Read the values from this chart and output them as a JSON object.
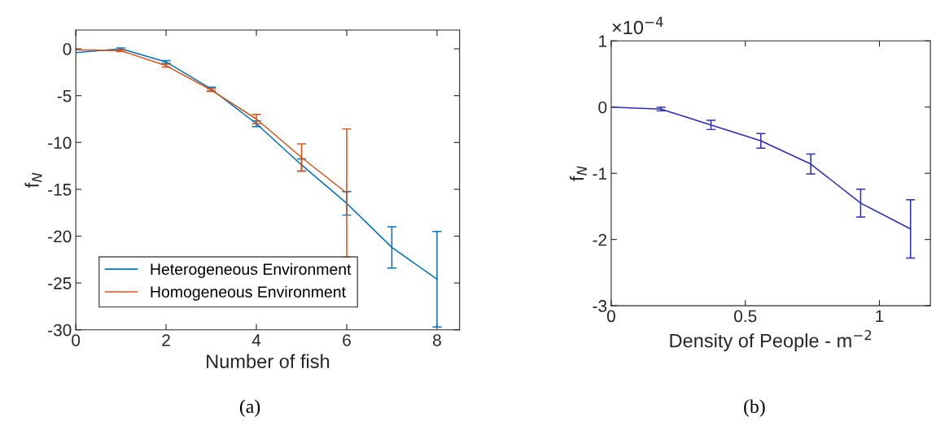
{
  "chart_data": [
    {
      "type": "line",
      "xlabel": "Number of fish",
      "ylabel": "f$_{N}$",
      "xlim": [
        0,
        8.5
      ],
      "ylim": [
        -30,
        2
      ],
      "xticks": [
        0,
        2,
        4,
        6,
        8
      ],
      "yticks": [
        -30,
        -25,
        -20,
        -15,
        -10,
        -5,
        0
      ],
      "grid": false,
      "legend": "bottom left",
      "marker": "none",
      "line_style": "solid",
      "annotations": [
        "(a)"
      ],
      "series": [
        {
          "name": "Heterogeneous Environment",
          "color": "#0072bd",
          "x": [
            0,
            1,
            2,
            3,
            4,
            5,
            6,
            7,
            8
          ],
          "values": [
            -0.4,
            0,
            -1.4,
            -4.3,
            -8.0,
            -12.4,
            -16.5,
            -21.2,
            -24.6
          ],
          "errors": [
            null,
            0.1,
            0.15,
            0.2,
            0.3,
            0.65,
            1.25,
            2.2,
            5.1
          ]
        },
        {
          "name": "Homogeneous Environment",
          "color": "#d95319",
          "x": [
            0,
            1,
            2,
            3,
            4,
            5,
            6
          ],
          "values": [
            -0.1,
            -0.2,
            -1.8,
            -4.4,
            -7.5,
            -11.6,
            -15.4
          ],
          "errors": [
            null,
            0.1,
            0.15,
            0.15,
            0.5,
            1.45,
            6.85
          ]
        }
      ]
    },
    {
      "type": "line",
      "xlabel": "Density of People - m$^{−2}$",
      "ylabel": "f$_{N}$",
      "xlim": [
        0,
        1.19
      ],
      "ylim": [
        -3,
        1
      ],
      "xticks": [
        0,
        0.5,
        1
      ],
      "yticks": [
        -3,
        -2,
        -1,
        0,
        1
      ],
      "grid": false,
      "marker": "none",
      "line_style": "solid",
      "annotations": [
        "×10$^{−4}$",
        "(b)"
      ],
      "series": [
        {
          "color": "#2b2bc0",
          "x": [
            0,
            0.186,
            0.372,
            0.558,
            0.744,
            0.93,
            1.116
          ],
          "values": [
            0,
            -0.03,
            -0.27,
            -0.51,
            -0.86,
            -1.45,
            -1.84
          ],
          "errors": [
            null,
            0.027,
            0.07,
            0.11,
            0.15,
            0.21,
            0.44
          ]
        }
      ]
    }
  ]
}
